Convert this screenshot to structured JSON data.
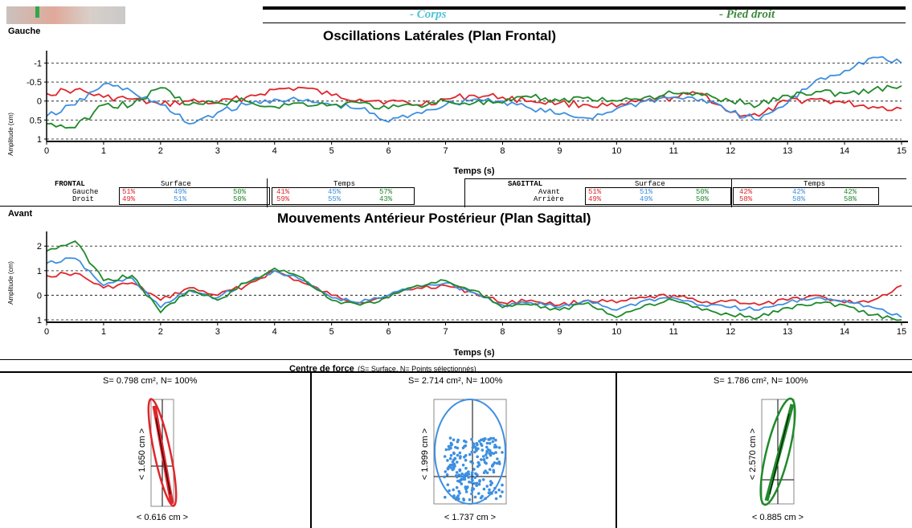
{
  "header": {
    "legend_corps": "- Corps",
    "legend_pied": "- Pied droit"
  },
  "colors": {
    "red": "#e0262b",
    "blue": "#3d8fe0",
    "green": "#1f8a2a"
  },
  "frontal_chart": {
    "side_label": "Gauche",
    "title": "Oscillations Latérales (Plan Frontal)",
    "ylabel": "Amplitude (cm)",
    "xlabel": "Temps (s)"
  },
  "sagittal_chart": {
    "side_label": "Avant",
    "title": "Mouvements Antérieur Postérieur (Plan Sagittal)",
    "ylabel": "Amplitude (cm)",
    "xlabel": "Temps (s)"
  },
  "table_frontal": {
    "label": "FRONTAL",
    "row1": "Gauche",
    "row2": "Droit",
    "surface_header": "Surface",
    "temps_header": "Temps",
    "surface_row1": [
      "51%",
      "49%",
      "50%"
    ],
    "surface_row2": [
      "49%",
      "51%",
      "50%"
    ],
    "temps_row1": [
      "41%",
      "45%",
      "57%"
    ],
    "temps_row2": [
      "59%",
      "55%",
      "43%"
    ]
  },
  "table_sagittal": {
    "label": "SAGITTAL",
    "row1": "Avant",
    "row2": "Arrière",
    "surface_header": "Surface",
    "temps_header": "Temps",
    "surface_row1": [
      "51%",
      "51%",
      "50%"
    ],
    "surface_row2": [
      "49%",
      "49%",
      "50%"
    ],
    "temps_row1": [
      "42%",
      "42%",
      "42%"
    ],
    "temps_row2": [
      "58%",
      "58%",
      "58%"
    ]
  },
  "centre_force": {
    "title": "Centre de force",
    "subtitle": "(S= Surface, N= Points sélectionnés)",
    "panels": [
      {
        "stats": "S= 0.798 cm², N= 100%",
        "height": "< 1.650 cm >",
        "width": "< 0.616 cm >"
      },
      {
        "stats": "S= 2.714 cm², N= 100%",
        "height": "< 1.999 cm >",
        "width": "< 1.737 cm >"
      },
      {
        "stats": "S= 1.786 cm², N= 100%",
        "height": "< 2.570 cm >",
        "width": "< 0.885 cm >"
      }
    ]
  },
  "chart_data": [
    {
      "type": "line",
      "title": "Oscillations Latérales (Plan Frontal)",
      "xlabel": "Temps (s)",
      "ylabel": "Amplitude (cm)",
      "xlim": [
        0,
        15
      ],
      "ylim": [
        1,
        -1.2
      ],
      "x_ticks": [
        0,
        1,
        2,
        3,
        4,
        5,
        6,
        7,
        8,
        9,
        10,
        11,
        12,
        13,
        14,
        15
      ],
      "y_ticks": [
        -1,
        -0.5,
        0,
        0.5,
        1
      ],
      "y_tick_labels": [
        "-1",
        "-0.5",
        "0",
        "0.5",
        "1"
      ],
      "x": [
        0,
        0.5,
        1,
        1.5,
        2,
        2.5,
        3,
        3.5,
        4,
        4.5,
        5,
        5.5,
        6,
        6.5,
        7,
        7.5,
        8,
        8.5,
        9,
        9.5,
        10,
        10.5,
        11,
        11.5,
        12,
        12.5,
        13,
        13.5,
        14,
        14.5,
        15
      ],
      "series": [
        {
          "color": "red",
          "values": [
            -0.2,
            -0.3,
            -0.1,
            -0.05,
            0.1,
            0,
            0.05,
            -0.1,
            -0.3,
            -0.35,
            -0.15,
            -0.05,
            0,
            0.1,
            -0.05,
            -0.15,
            -0.1,
            0,
            0.05,
            0.1,
            0.15,
            0,
            -0.1,
            -0.2,
            0.3,
            0.4,
            0,
            -0.05,
            0.05,
            0.15,
            0.2
          ]
        },
        {
          "color": "blue",
          "values": [
            0.4,
            0.1,
            -0.45,
            -0.25,
            0.1,
            0.6,
            0.3,
            0.1,
            -0.05,
            0,
            0.1,
            0.2,
            0.55,
            0.3,
            0.1,
            -0.05,
            0,
            0.2,
            0.35,
            0.45,
            0.2,
            0,
            -0.1,
            -0.05,
            0.3,
            0.5,
            0.05,
            -0.55,
            -0.8,
            -1.15,
            -1
          ]
        },
        {
          "color": "green",
          "values": [
            0.6,
            0.7,
            0.1,
            0.1,
            -0.35,
            0.1,
            0.05,
            0,
            0.15,
            0.05,
            0.1,
            0.05,
            0.2,
            0.1,
            0,
            0.05,
            0.05,
            -0.1,
            0,
            -0.1,
            0,
            -0.1,
            -0.2,
            -0.15,
            0,
            0.1,
            -0.15,
            -0.25,
            -0.2,
            -0.3,
            -0.4
          ]
        }
      ]
    },
    {
      "type": "line",
      "title": "Mouvements Antérieur Postérieur (Plan Sagittal)",
      "xlabel": "Temps (s)",
      "ylabel": "Amplitude (cm)",
      "xlim": [
        0,
        15
      ],
      "ylim": [
        1,
        -2.4
      ],
      "x_ticks": [
        0,
        1,
        2,
        3,
        4,
        5,
        6,
        7,
        8,
        9,
        10,
        11,
        12,
        13,
        14,
        15
      ],
      "y_ticks": [
        -2,
        -1,
        0,
        1
      ],
      "y_tick_labels": [
        "2",
        "1",
        "0",
        "1"
      ],
      "x": [
        0,
        0.5,
        1,
        1.5,
        2,
        2.5,
        3,
        3.5,
        4,
        4.5,
        5,
        5.5,
        6,
        6.5,
        7,
        7.5,
        8,
        8.5,
        9,
        9.5,
        10,
        10.5,
        11,
        11.5,
        12,
        12.5,
        13,
        13.5,
        14,
        14.5,
        15
      ],
      "series": [
        {
          "color": "red",
          "values": [
            -0.8,
            -0.9,
            -0.3,
            -0.5,
            0.2,
            -0.3,
            0,
            -0.4,
            -1,
            -0.5,
            0,
            0.3,
            0,
            -0.3,
            -0.4,
            -0.1,
            0.3,
            0.2,
            0.4,
            0.2,
            0.3,
            0.1,
            0,
            0.3,
            0.2,
            0.4,
            0.2,
            0,
            0.3,
            0.2,
            -0.4
          ]
        },
        {
          "color": "blue",
          "values": [
            -1.3,
            -1.5,
            -0.4,
            -0.7,
            0.5,
            -0.2,
            0.1,
            -0.5,
            -1,
            -0.6,
            0.1,
            0.3,
            0,
            -0.4,
            -0.5,
            -0.1,
            0.4,
            0.3,
            0.5,
            0.2,
            0.6,
            0.2,
            0.1,
            0.4,
            0.5,
            0.6,
            0.3,
            0.1,
            0.2,
            0.5,
            0.9
          ]
        },
        {
          "color": "green",
          "values": [
            -1.8,
            -2.2,
            -0.6,
            -0.8,
            0.7,
            -0.2,
            0.2,
            -0.5,
            -1.1,
            -0.7,
            0.2,
            0.4,
            0.1,
            -0.4,
            -0.6,
            -0.2,
            0.5,
            0.4,
            0.6,
            0.3,
            0.9,
            0.4,
            0.2,
            0.6,
            0.8,
            0.9,
            0.5,
            0.3,
            0.4,
            0.8,
            1
          ]
        }
      ]
    },
    {
      "type": "scatter",
      "title": "Centre de force (S= Surface, N= Points sélectionnés)",
      "series": [
        {
          "name": "S= 0.798 cm², N= 100%",
          "color": "red",
          "shape": "elongated ellipse, tilted"
        },
        {
          "name": "S= 2.714 cm², N= 100%",
          "color": "blue",
          "shape": "circular ellipse with point cloud"
        },
        {
          "name": "S= 1.786 cm², N= 100%",
          "color": "green",
          "shape": "elongated ellipse, tilted"
        }
      ]
    }
  ]
}
